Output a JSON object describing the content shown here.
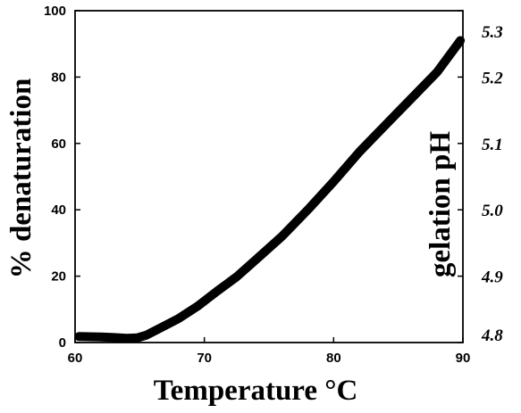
{
  "chart_data": {
    "type": "line",
    "title": "",
    "xlabel": "Temperature °C",
    "ylabel": "% denaturation",
    "y2label": "gelation pH",
    "xlim": [
      60,
      90
    ],
    "ylim": [
      0,
      100
    ],
    "y2lim": [
      4.8,
      5.3
    ],
    "x_ticks": [
      "60",
      "70",
      "80",
      "90"
    ],
    "y_ticks": [
      "0",
      "20",
      "40",
      "60",
      "80",
      "100"
    ],
    "y2_ticks": [
      "4.8",
      "4.9",
      "5.0",
      "5.1",
      "5.2",
      "5.3"
    ],
    "grid": false,
    "legend": "none",
    "line_color": "#000000",
    "series": [
      {
        "x": [
          60.3,
          62,
          63,
          64,
          64.8,
          65.5,
          66.5,
          68,
          69.5,
          71,
          72.5,
          74,
          76,
          78,
          80,
          82,
          84,
          86,
          88,
          89.8
        ],
        "values": [
          1.8,
          1.7,
          1.5,
          1.3,
          1.4,
          2.2,
          4.2,
          7.2,
          11,
          15.5,
          19.8,
          25,
          32,
          40,
          48.5,
          57.5,
          65.5,
          73.5,
          81.5,
          91
        ]
      }
    ]
  }
}
